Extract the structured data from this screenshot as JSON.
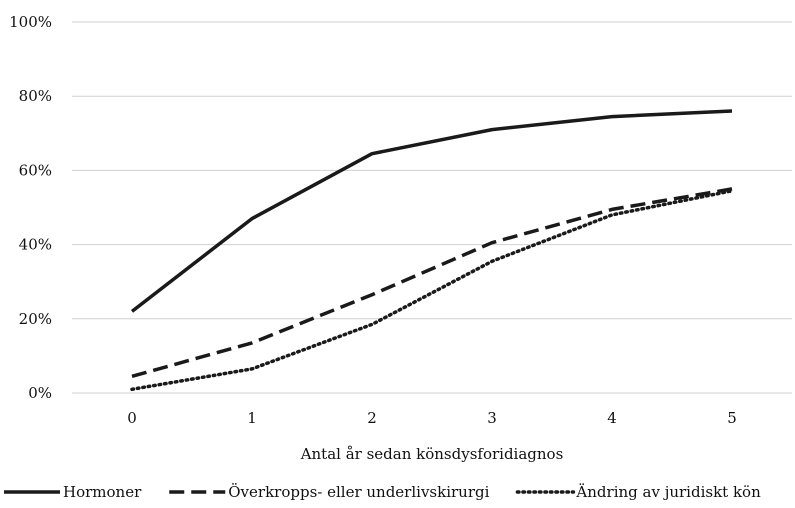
{
  "chart_data": {
    "type": "line",
    "title": "",
    "xlabel": "Antal år sedan könsdysforidiagnos",
    "ylabel": "",
    "x": [
      0,
      1,
      2,
      3,
      4,
      5
    ],
    "x_tick_labels": [
      "0",
      "1",
      "2",
      "3",
      "4",
      "5"
    ],
    "ylim": [
      0,
      100
    ],
    "y_ticks": [
      0,
      20,
      40,
      60,
      80,
      100
    ],
    "y_tick_labels": [
      "0%",
      "20%",
      "40%",
      "60%",
      "80%",
      "100%"
    ],
    "grid": "horizontal",
    "legend_position": "bottom",
    "series": [
      {
        "name": "Hormoner",
        "style": "solid",
        "color": "#1a1a1a",
        "values": [
          22,
          47,
          64.5,
          71,
          74.5,
          76
        ]
      },
      {
        "name": "Överkropps- eller underlivskirurgi",
        "style": "dashed",
        "color": "#1a1a1a",
        "values": [
          4.5,
          13.5,
          26.5,
          40.5,
          49.5,
          55
        ]
      },
      {
        "name": "Ändring av juridiskt kön",
        "style": "dotted",
        "color": "#1a1a1a",
        "values": [
          1,
          6.5,
          18.5,
          35.5,
          48,
          54.5
        ]
      }
    ]
  }
}
